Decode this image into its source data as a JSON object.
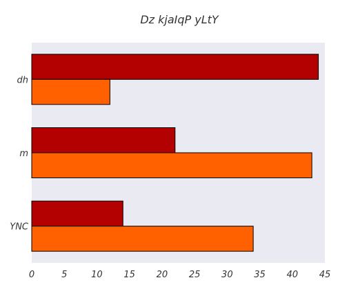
{
  "chart_data": {
    "type": "bar",
    "orientation": "horizontal",
    "title": "Dz kjaIqP yLtY",
    "xlabel": "",
    "ylabel": "",
    "categories": [
      "dh",
      "m",
      "YNC"
    ],
    "series": [
      {
        "color": "#b30000",
        "values": [
          44,
          22,
          14
        ]
      },
      {
        "color": "#ff6000",
        "values": [
          12,
          43,
          34
        ]
      }
    ],
    "xlim": [
      0,
      45
    ],
    "xticks": [
      0,
      5,
      10,
      15,
      20,
      25,
      30,
      35,
      40,
      45
    ],
    "grid": false,
    "legend": "none",
    "plot_background": "#eaeaf2"
  }
}
